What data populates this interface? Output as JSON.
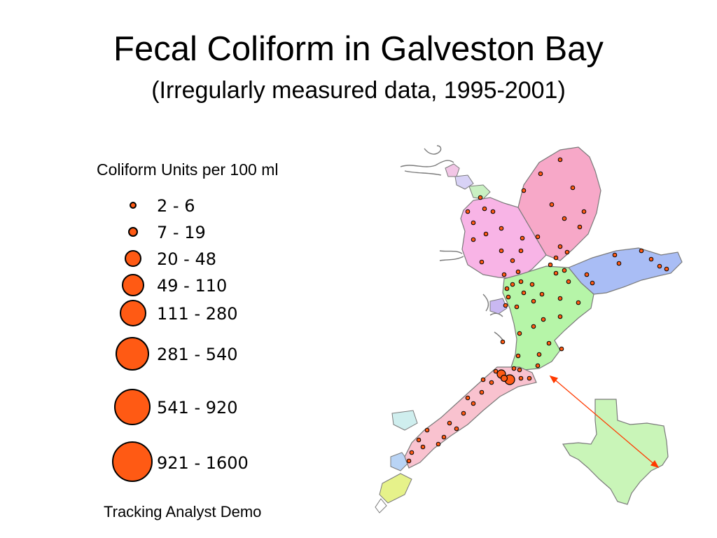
{
  "slide": {
    "title": "Fecal Coliform in Galveston Bay",
    "subtitle": "(Irregularly measured data, 1995-2001)",
    "footer": "Tracking Analyst Demo"
  },
  "legend": {
    "title": "Coliform Units per 100 ml",
    "symbol_color": "#ff5a14",
    "classes": [
      {
        "label": "2 - 6"
      },
      {
        "label": "7 - 19"
      },
      {
        "label": "20 - 48"
      },
      {
        "label": "49 - 110"
      },
      {
        "label": "111 - 280"
      },
      {
        "label": "281 - 540"
      },
      {
        "label": "541 - 920"
      },
      {
        "label": "921 - 1600"
      }
    ]
  },
  "map": {
    "colors": {
      "upper_bay": "#f8b4e6",
      "trinity_bay": "#f7a8c8",
      "east_bay": "#a9bdf5",
      "lower_bay": "#b6f5a8",
      "west_bay": "#f9c2cf",
      "texas_inset": "#c9f5b8",
      "points": "#ff5a14",
      "arrow": "#ff3a00"
    }
  }
}
